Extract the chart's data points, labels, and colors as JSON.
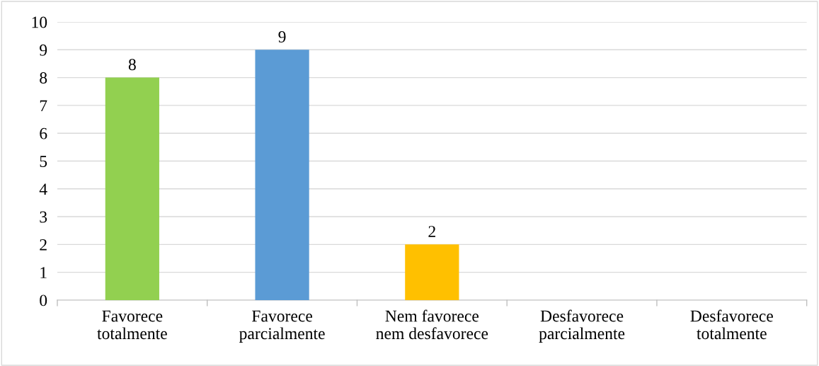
{
  "chart_data": {
    "type": "bar",
    "categories": [
      "Favorece\ntotalmente",
      "Favorece\nparcialmente",
      "Nem favorece\nnem desfavorece",
      "Desfavorece\nparcialmente",
      "Desfavorece\ntotalmente"
    ],
    "values": [
      8,
      9,
      2,
      0,
      0
    ],
    "colors": [
      "#92d050",
      "#5b9bd5",
      "#ffc000",
      null,
      null
    ],
    "value_labels": [
      "8",
      "9",
      "2",
      null,
      null
    ],
    "ylim": [
      0,
      10
    ],
    "yticks": [
      0,
      1,
      2,
      3,
      4,
      5,
      6,
      7,
      8,
      9,
      10
    ],
    "grid": "y",
    "legend": false
  }
}
